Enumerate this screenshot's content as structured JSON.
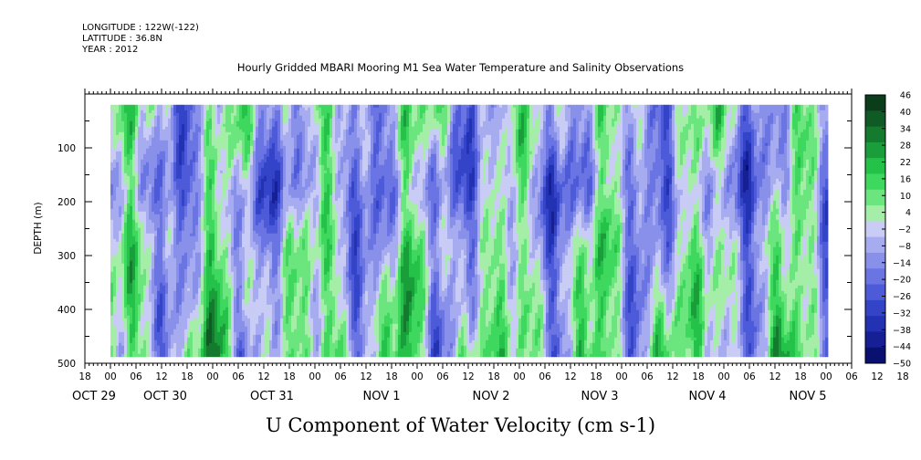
{
  "header": {
    "longitude": "LONGITUDE : 122W(-122)",
    "latitude": "LATITUDE : 36.8N",
    "year": "YEAR : 2012"
  },
  "chart_data": {
    "type": "heatmap",
    "title": "Hourly Gridded MBARI Mooring M1 Sea Water Temperature and Salinity Observations",
    "variable_label": "U Component of Water Velocity (cm s-1)",
    "ylabel": "DEPTH (m)",
    "ylim": [
      500,
      0
    ],
    "y_ticks": [
      100,
      200,
      300,
      400,
      500
    ],
    "x_hour_ticks": [
      "18",
      "00",
      "06",
      "12",
      "18",
      "00",
      "06",
      "12",
      "18",
      "00",
      "06",
      "12",
      "18",
      "00",
      "06",
      "12",
      "18",
      "00",
      "06",
      "12",
      "18",
      "00",
      "06",
      "12",
      "18",
      "00",
      "06",
      "12",
      "18",
      "00",
      "06",
      "12",
      "18"
    ],
    "x_day_labels": [
      "OCT 29",
      "OCT 30",
      "OCT 31",
      "NOV  1",
      "NOV  2",
      "NOV  3",
      "NOV  4",
      "NOV  5"
    ],
    "colorbar": {
      "levels": [
        46,
        40,
        34,
        28,
        22,
        16,
        10,
        4,
        -2,
        -8,
        -14,
        -20,
        -26,
        -32,
        -38,
        -44,
        -50
      ],
      "colors": [
        "#0b3d1a",
        "#0f5a25",
        "#137a2e",
        "#1a9e3b",
        "#25c24a",
        "#3fd85e",
        "#6be57e",
        "#a4eea8",
        "#c9ccf4",
        "#a6acef",
        "#8890e9",
        "#6a74e3",
        "#4d5bd9",
        "#3444c9",
        "#2232b2",
        "#161f94",
        "#0a1070"
      ]
    },
    "data_extent": {
      "x_start_hours": 6,
      "x_end_hours": 174,
      "depth_top_m": 20,
      "depth_bottom_m": 485
    }
  }
}
